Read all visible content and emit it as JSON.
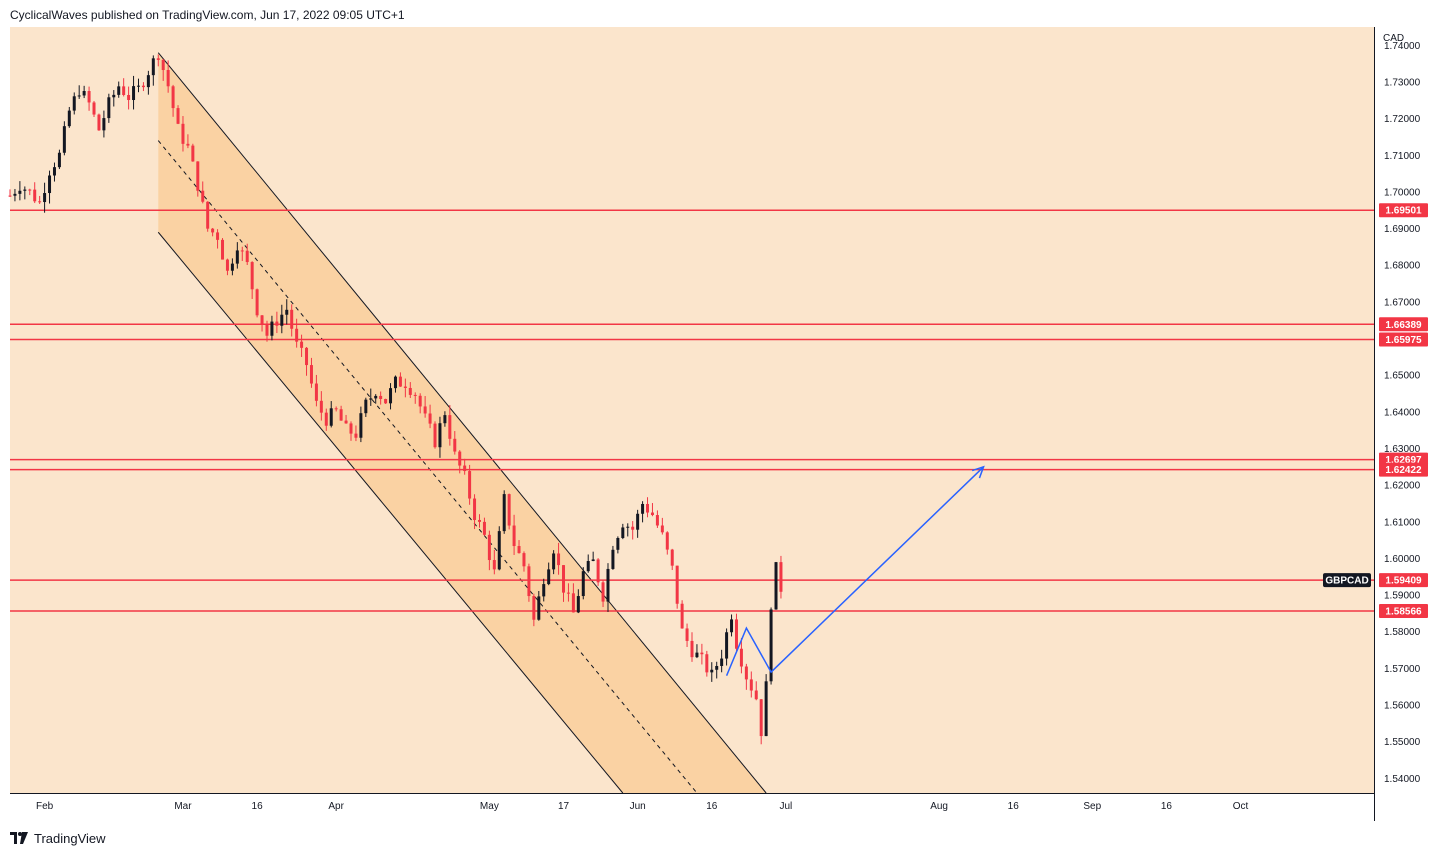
{
  "header": {
    "attribution": "CyclicalWaves published on TradingView.com, Jun 17, 2022 09:05 UTC+1"
  },
  "footer": {
    "brand": "TradingView",
    "logo_icon": "tradingview-logo-icon"
  },
  "colors": {
    "plot_background": "#fbe5cc",
    "channel_fill": "#f9cf9b",
    "up_candle": "#131722",
    "down_candle": "#f23645",
    "level_line": "#f23645",
    "projection": "#2962ff",
    "symbol_badge": "#131722"
  },
  "chart_data": {
    "type": "candlestick",
    "symbol": "GBPCAD",
    "y_axis_unit": "CAD",
    "ylim": [
      1.536,
      1.745
    ],
    "y_ticks": [
      "1.74000",
      "1.73000",
      "1.72000",
      "1.71000",
      "1.70000",
      "1.69000",
      "1.68000",
      "1.67000",
      "1.66000",
      "1.65000",
      "1.64000",
      "1.63000",
      "1.62000",
      "1.61000",
      "1.60000",
      "1.59000",
      "1.58000",
      "1.57000",
      "1.56000",
      "1.55000",
      "1.54000"
    ],
    "x_range": [
      "2022-01-25",
      "2022-10-28"
    ],
    "x_ticks": [
      {
        "date": "2022-02-01",
        "label": "Feb"
      },
      {
        "date": "2022-03-01",
        "label": "Mar"
      },
      {
        "date": "2022-03-16",
        "label": "16"
      },
      {
        "date": "2022-04-01",
        "label": "Apr"
      },
      {
        "date": "2022-05-02",
        "label": "May"
      },
      {
        "date": "2022-05-17",
        "label": "17"
      },
      {
        "date": "2022-06-01",
        "label": "Jun"
      },
      {
        "date": "2022-06-16",
        "label": "16"
      },
      {
        "date": "2022-07-01",
        "label": "Jul"
      },
      {
        "date": "2022-08-01",
        "label": "Aug"
      },
      {
        "date": "2022-08-16",
        "label": "16"
      },
      {
        "date": "2022-09-01",
        "label": "Sep"
      },
      {
        "date": "2022-09-16",
        "label": "16"
      },
      {
        "date": "2022-10-01",
        "label": "Oct"
      }
    ],
    "price_series": [
      {
        "date": "2022-01-25",
        "close": 1.699
      },
      {
        "date": "2022-01-27",
        "close": 1.702
      },
      {
        "date": "2022-01-29",
        "close": 1.7
      },
      {
        "date": "2022-01-31",
        "close": 1.697
      },
      {
        "date": "2022-02-02",
        "close": 1.706
      },
      {
        "date": "2022-02-04",
        "close": 1.71
      },
      {
        "date": "2022-02-06",
        "close": 1.722
      },
      {
        "date": "2022-02-08",
        "close": 1.728
      },
      {
        "date": "2022-02-10",
        "close": 1.724
      },
      {
        "date": "2022-02-12",
        "close": 1.717
      },
      {
        "date": "2022-02-14",
        "close": 1.724
      },
      {
        "date": "2022-02-16",
        "close": 1.729
      },
      {
        "date": "2022-02-18",
        "close": 1.726
      },
      {
        "date": "2022-02-20",
        "close": 1.728
      },
      {
        "date": "2022-02-22",
        "close": 1.733
      },
      {
        "date": "2022-02-24",
        "close": 1.738
      },
      {
        "date": "2022-02-26",
        "close": 1.729
      },
      {
        "date": "2022-02-28",
        "close": 1.717
      },
      {
        "date": "2022-03-02",
        "close": 1.712
      },
      {
        "date": "2022-03-04",
        "close": 1.702
      },
      {
        "date": "2022-03-06",
        "close": 1.69
      },
      {
        "date": "2022-03-08",
        "close": 1.688
      },
      {
        "date": "2022-03-10",
        "close": 1.678
      },
      {
        "date": "2022-03-12",
        "close": 1.686
      },
      {
        "date": "2022-03-14",
        "close": 1.68
      },
      {
        "date": "2022-03-16",
        "close": 1.668
      },
      {
        "date": "2022-03-18",
        "close": 1.661
      },
      {
        "date": "2022-03-20",
        "close": 1.665
      },
      {
        "date": "2022-03-22",
        "close": 1.668
      },
      {
        "date": "2022-03-24",
        "close": 1.658
      },
      {
        "date": "2022-03-26",
        "close": 1.653
      },
      {
        "date": "2022-03-28",
        "close": 1.642
      },
      {
        "date": "2022-03-30",
        "close": 1.638
      },
      {
        "date": "2022-04-01",
        "close": 1.64
      },
      {
        "date": "2022-04-03",
        "close": 1.635
      },
      {
        "date": "2022-04-05",
        "close": 1.634
      },
      {
        "date": "2022-04-07",
        "close": 1.642
      },
      {
        "date": "2022-04-09",
        "close": 1.646
      },
      {
        "date": "2022-04-11",
        "close": 1.643
      },
      {
        "date": "2022-04-13",
        "close": 1.648
      },
      {
        "date": "2022-04-15",
        "close": 1.648
      },
      {
        "date": "2022-04-17",
        "close": 1.645
      },
      {
        "date": "2022-04-19",
        "close": 1.638
      },
      {
        "date": "2022-04-21",
        "close": 1.632
      },
      {
        "date": "2022-04-23",
        "close": 1.64
      },
      {
        "date": "2022-04-25",
        "close": 1.628
      },
      {
        "date": "2022-04-27",
        "close": 1.622
      },
      {
        "date": "2022-04-29",
        "close": 1.612
      },
      {
        "date": "2022-05-01",
        "close": 1.606
      },
      {
        "date": "2022-05-03",
        "close": 1.596
      },
      {
        "date": "2022-05-05",
        "close": 1.616
      },
      {
        "date": "2022-05-07",
        "close": 1.604
      },
      {
        "date": "2022-05-09",
        "close": 1.598
      },
      {
        "date": "2022-05-11",
        "close": 1.583
      },
      {
        "date": "2022-05-13",
        "close": 1.595
      },
      {
        "date": "2022-05-15",
        "close": 1.603
      },
      {
        "date": "2022-05-17",
        "close": 1.592
      },
      {
        "date": "2022-05-19",
        "close": 1.585
      },
      {
        "date": "2022-05-21",
        "close": 1.596
      },
      {
        "date": "2022-05-23",
        "close": 1.599
      },
      {
        "date": "2022-05-25",
        "close": 1.59
      },
      {
        "date": "2022-05-27",
        "close": 1.604
      },
      {
        "date": "2022-05-29",
        "close": 1.61
      },
      {
        "date": "2022-05-31",
        "close": 1.608
      },
      {
        "date": "2022-06-02",
        "close": 1.615
      },
      {
        "date": "2022-06-04",
        "close": 1.612
      },
      {
        "date": "2022-06-06",
        "close": 1.606
      },
      {
        "date": "2022-06-08",
        "close": 1.597
      },
      {
        "date": "2022-06-10",
        "close": 1.58
      },
      {
        "date": "2022-06-12",
        "close": 1.575
      },
      {
        "date": "2022-06-14",
        "close": 1.572
      },
      {
        "date": "2022-06-16",
        "close": 1.568
      },
      {
        "date": "2022-06-18",
        "close": 1.574
      },
      {
        "date": "2022-06-20",
        "close": 1.585
      },
      {
        "date": "2022-06-21",
        "close": 1.577
      },
      {
        "date": "2022-06-23",
        "close": 1.568
      },
      {
        "date": "2022-06-25",
        "close": 1.562
      },
      {
        "date": "2022-06-26",
        "close": 1.553
      },
      {
        "date": "2022-06-27",
        "close": 1.565
      },
      {
        "date": "2022-06-28",
        "close": 1.588
      },
      {
        "date": "2022-06-29",
        "close": 1.597
      },
      {
        "date": "2022-06-30",
        "close": 1.592
      }
    ],
    "channel": {
      "upper": [
        {
          "date": "2022-02-24",
          "price": 1.738
        },
        {
          "date": "2022-06-27",
          "price": 1.536
        }
      ],
      "lower": [
        {
          "date": "2022-02-24",
          "price": 1.689
        },
        {
          "date": "2022-05-29",
          "price": 1.536
        }
      ],
      "median": [
        {
          "date": "2022-02-24",
          "price": 1.714
        },
        {
          "date": "2022-06-13",
          "price": 1.536
        }
      ]
    },
    "horizontal_levels": [
      {
        "label": "1.69501",
        "price": 1.69501
      },
      {
        "label": "1.66389",
        "price": 1.66389
      },
      {
        "label": "1.65975",
        "price": 1.65975
      },
      {
        "label": "1.62697",
        "price": 1.62697
      },
      {
        "label": "1.62422",
        "price": 1.62422
      },
      {
        "label": "1.59409",
        "price": 1.59409
      },
      {
        "label": "1.58566",
        "price": 1.58566
      }
    ],
    "last_price_badge": {
      "label": "GBPCAD",
      "price": 1.59409
    },
    "projection_path": [
      {
        "date": "2022-06-19",
        "price": 1.568
      },
      {
        "date": "2022-06-23",
        "price": 1.581
      },
      {
        "date": "2022-06-28",
        "price": 1.569
      },
      {
        "date": "2022-08-10",
        "price": 1.625
      }
    ],
    "grid": false,
    "legend": "none"
  }
}
